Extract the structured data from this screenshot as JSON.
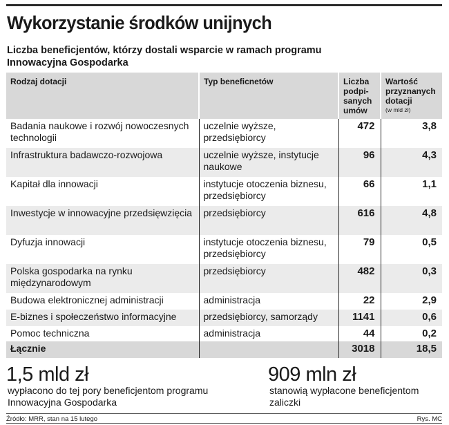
{
  "title": "Wykorzystanie środków unijnych",
  "subtitle": "Liczba beneficjentów, którzy dostali wsparcie w ramach programu Innowacyjna Gospodarka",
  "table": {
    "headers": {
      "col1": "Rodzaj dotacji",
      "col2": "Typ beneficnetów",
      "col3": "Liczba podpi-sanych umów",
      "col4": "Wartość przyznanych dotacji",
      "col4_unit": "(w mld zł)"
    },
    "rows": [
      {
        "rodzaj": "Badania naukowe i rozwój nowoczesnych technologii",
        "typ": "uczelnie wyższe, przedsiębiorcy",
        "liczba": "472",
        "wartosc": "3,8"
      },
      {
        "rodzaj": "Infrastruktura badawczo-rozwojowa",
        "typ": "uczelnie wyższe, instytucje naukowe",
        "liczba": "96",
        "wartosc": "4,3"
      },
      {
        "rodzaj": "Kapitał dla innowacji",
        "typ": "instytucje otoczenia biznesu, przedsiębiorcy",
        "liczba": "66",
        "wartosc": "1,1"
      },
      {
        "rodzaj": "Inwestycje w innowacyjne przedsięwzięcia",
        "typ": "przedsiębiorcy",
        "liczba": "616",
        "wartosc": "4,8"
      },
      {
        "rodzaj": "Dyfuzja innowacji",
        "typ": "instytucje otoczenia biznesu, przedsiębiorcy",
        "liczba": "79",
        "wartosc": "0,5"
      },
      {
        "rodzaj": "Polska gospodarka na rynku międzynarodowym",
        "typ": "przedsiębiorcy",
        "liczba": "482",
        "wartosc": "0,3"
      },
      {
        "rodzaj": "Budowa elektronicznej administracji",
        "typ": "administracja",
        "liczba": "22",
        "wartosc": "2,9"
      },
      {
        "rodzaj": "E-biznes i społeczeństwo informacyjne",
        "typ": "przedsiębiorcy, samorządy",
        "liczba": "1141",
        "wartosc": "0,6"
      },
      {
        "rodzaj": "Pomoc techniczna",
        "typ": "administracja",
        "liczba": "44",
        "wartosc": "0,2"
      }
    ],
    "total": {
      "label": "Łącznie",
      "liczba": "3018",
      "wartosc": "18,5"
    }
  },
  "stats": [
    {
      "value": "1,5 mld zł",
      "desc": "wypłacono do tej pory beneficjentom programu Innowacyjna Gospodarka"
    },
    {
      "value": "909 mln zł",
      "desc": "stanowią wypłacone beneficjentom zaliczki"
    }
  ],
  "footer": {
    "source": "Źródło: MRR, stan na 15 lutego",
    "credit": "Rys. MC"
  }
}
